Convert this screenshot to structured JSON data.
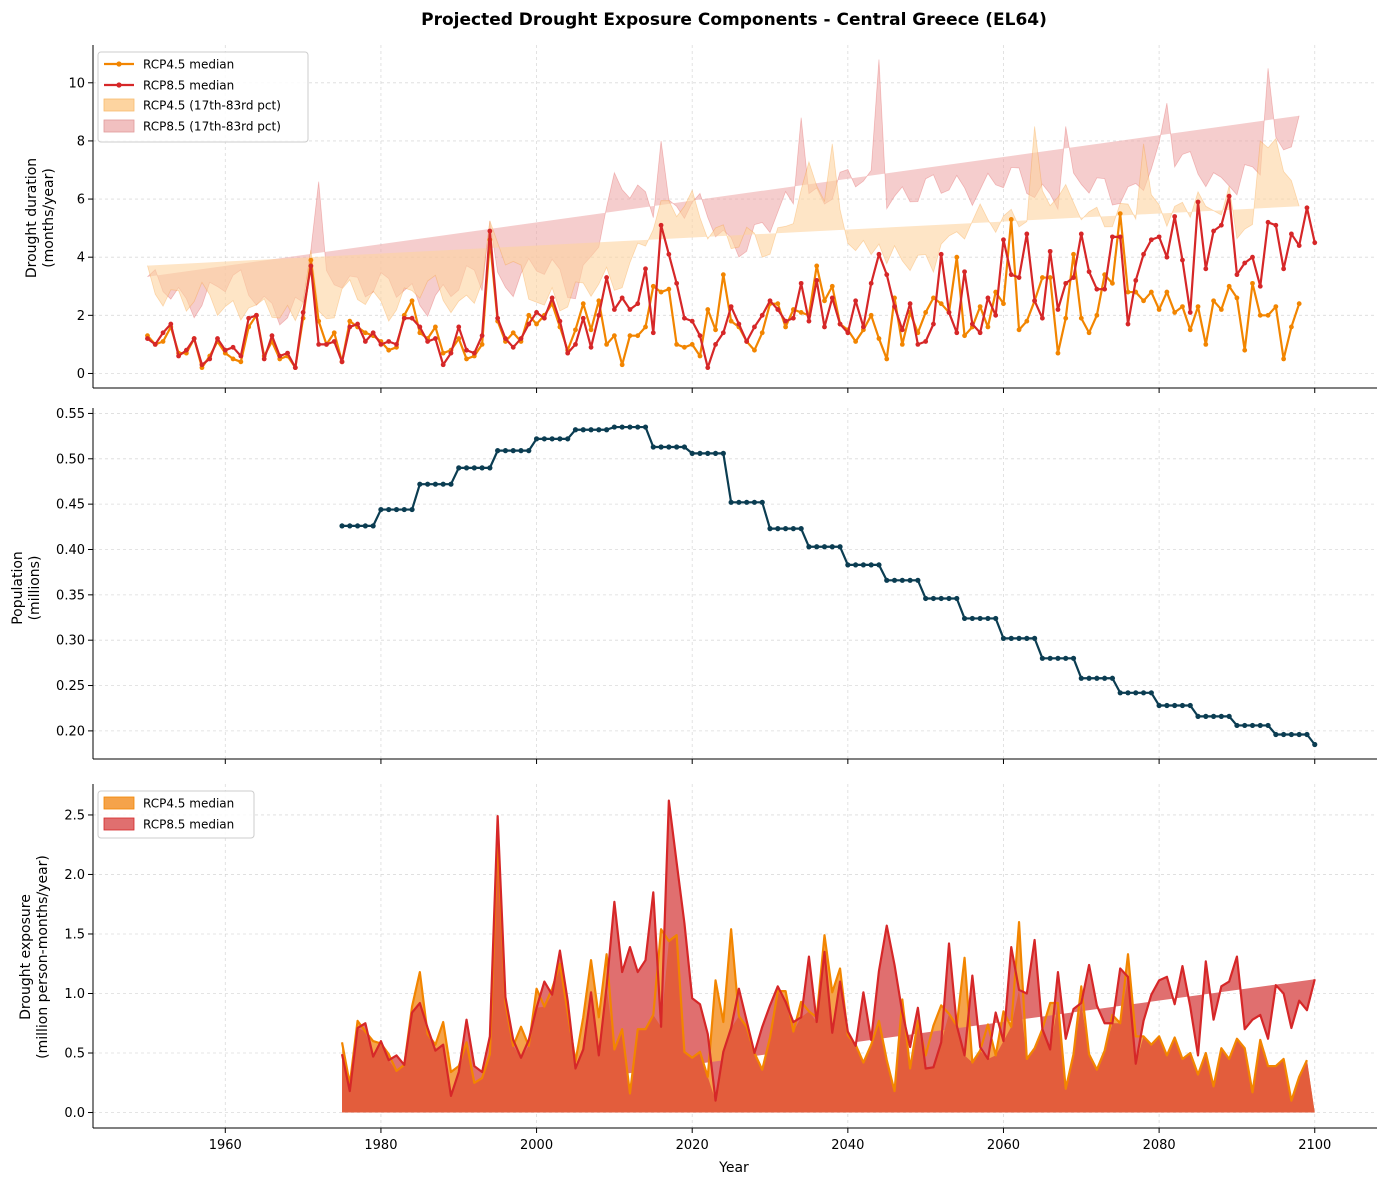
{
  "figure": {
    "title": "Projected Drought Exposure Components - Central Greece (EL64)"
  },
  "colors": {
    "rcp45": "#f28500",
    "rcp85": "#d62728",
    "rcp45_band": "#fdd4a0",
    "rcp85_band": "#eda4a4",
    "rcp45_area": "#f5a34a",
    "rcp85_area": "#e06f6f",
    "overlap_area": "#e35d3c",
    "population": "#0b3d52"
  },
  "chart_data": [
    {
      "type": "line",
      "ylabel": [
        "Drought duration",
        "(months/year)"
      ],
      "xlim": [
        1943,
        2108
      ],
      "ylim": [
        -0.5,
        11.3
      ],
      "yticks": [
        0,
        2,
        4,
        6,
        8,
        10
      ],
      "grid": true,
      "legend": {
        "placement": "top-left",
        "entries": [
          "RCP4.5 median",
          "RCP8.5 median",
          "RCP4.5 (17th-83rd pct)",
          "RCP8.5 (17th-83rd pct)"
        ]
      },
      "x_start": 1950,
      "x_end": 2100,
      "series": [
        {
          "name": "RCP4.5 median",
          "values": [
            1.3,
            1.0,
            1.1,
            1.6,
            0.7,
            0.7,
            1.2,
            0.2,
            0.6,
            1.1,
            0.7,
            0.5,
            0.4,
            1.6,
            2.0,
            0.6,
            1.1,
            0.5,
            0.6,
            0.2,
            1.9,
            3.9,
            1.8,
            1.0,
            1.4,
            0.4,
            1.8,
            1.6,
            1.4,
            1.3,
            1.1,
            0.8,
            0.9,
            2.0,
            2.5,
            1.4,
            1.2,
            1.6,
            0.7,
            0.8,
            1.2,
            0.5,
            0.6,
            1.0,
            4.6,
            1.8,
            1.1,
            1.4,
            1.1,
            2.0,
            1.7,
            2.0,
            2.4,
            1.6,
            0.8,
            1.5,
            2.4,
            1.5,
            2.5,
            1.0,
            1.3,
            0.3,
            1.3,
            1.3,
            1.6,
            3.0,
            2.8,
            2.9,
            1.0,
            0.9,
            1.0,
            0.6,
            2.2,
            1.5,
            3.4,
            1.8,
            1.6,
            1.1,
            0.8,
            1.4,
            2.4,
            2.4,
            1.6,
            2.2,
            2.1,
            2.0,
            3.7,
            2.5,
            3.0,
            1.7,
            1.5,
            1.1,
            1.5,
            2.0,
            1.2,
            0.5,
            2.6,
            1.0,
            2.1,
            1.4,
            2.1,
            2.6,
            2.4,
            2.1,
            4.0,
            1.3,
            1.6,
            2.3,
            1.6,
            2.8,
            2.4,
            5.3,
            1.5,
            1.8,
            2.5,
            3.3,
            3.3,
            0.7,
            1.9,
            4.1,
            1.9,
            1.4,
            2.0,
            3.4,
            3.1,
            5.5,
            2.8,
            2.8,
            2.5,
            2.8,
            2.2,
            2.8,
            2.1,
            2.3,
            1.5,
            2.3,
            1.0,
            2.5,
            2.2,
            3.0,
            2.6,
            0.8,
            3.1,
            2.0,
            2.0,
            2.3,
            0.5,
            1.6,
            2.4
          ]
        },
        {
          "name": "RCP8.5 median",
          "values": [
            1.2,
            1.0,
            1.4,
            1.7,
            0.6,
            0.8,
            1.2,
            0.3,
            0.5,
            1.2,
            0.8,
            0.9,
            0.6,
            1.9,
            2.0,
            0.5,
            1.3,
            0.6,
            0.7,
            0.2,
            2.1,
            3.7,
            1.0,
            1.0,
            1.1,
            0.4,
            1.6,
            1.7,
            1.1,
            1.4,
            1.0,
            1.1,
            1.0,
            1.9,
            1.9,
            1.6,
            1.1,
            1.2,
            0.3,
            0.7,
            1.6,
            0.8,
            0.7,
            1.3,
            4.9,
            1.9,
            1.2,
            0.9,
            1.2,
            1.7,
            2.1,
            1.9,
            2.6,
            1.8,
            0.7,
            1.0,
            1.9,
            0.9,
            2.0,
            3.3,
            2.2,
            2.6,
            2.2,
            2.4,
            3.6,
            1.4,
            5.1,
            4.1,
            3.1,
            1.9,
            1.8,
            1.3,
            0.2,
            1.0,
            1.4,
            2.3,
            1.7,
            1.1,
            1.6,
            2.0,
            2.5,
            2.2,
            1.8,
            1.9,
            3.1,
            1.8,
            3.2,
            1.6,
            2.6,
            1.7,
            1.4,
            2.5,
            1.6,
            3.1,
            4.1,
            3.4,
            2.3,
            1.5,
            2.4,
            1.0,
            1.1,
            1.7,
            4.1,
            2.1,
            1.4,
            3.5,
            1.7,
            1.4,
            2.6,
            2.0,
            4.6,
            3.4,
            3.3,
            4.8,
            2.5,
            1.9,
            4.2,
            2.2,
            3.1,
            3.3,
            4.8,
            3.5,
            2.9,
            2.9,
            4.7,
            4.7,
            1.7,
            3.2,
            4.1,
            4.6,
            4.7,
            4.0,
            5.4,
            3.9,
            2.1,
            5.9,
            3.6,
            4.9,
            5.1,
            6.1,
            3.4,
            3.8,
            4.0,
            3.0,
            5.2,
            5.1,
            3.6,
            4.8,
            4.4,
            5.7,
            4.5
          ]
        }
      ],
      "bands": [
        {
          "name": "RCP4.5 (17th-83rd pct)",
          "x": [
            1950,
            1955,
            1960,
            1965,
            1970,
            1975,
            1980,
            1985,
            1990,
            1995,
            2000,
            2005,
            2010,
            2015,
            2020,
            2025,
            2030,
            2035,
            2040,
            2045,
            2050,
            2055,
            2060,
            2065,
            2070,
            2075,
            2080,
            2085,
            2090,
            2095,
            2100
          ],
          "lower": [
            0.6,
            0.1,
            0.0,
            0.3,
            0.1,
            0.0,
            0.0,
            0.1,
            0.2,
            0.0,
            0.2,
            0.2,
            0.2,
            0.1,
            0.1,
            0.1,
            0.0,
            0.1,
            0.1,
            0.0,
            0.2,
            0.1,
            0.3,
            0.3,
            0.0,
            0.3,
            0.3,
            0.4,
            0.3,
            0.5,
            1.2
          ],
          "upper": [
            3.5,
            2.3,
            2.5,
            2.0,
            1.6,
            2.5,
            2.5,
            2.8,
            2.4,
            4.2,
            2.4,
            2.5,
            3.2,
            5.0,
            6.1,
            4.3,
            4.5,
            6.6,
            5.1,
            3.5,
            4.0,
            4.8,
            5.5,
            5.8,
            6.0,
            5.0,
            6.0,
            5.3,
            4.5,
            7.9,
            3.5
          ]
        },
        {
          "name": "RCP8.5 (17th-83rd pct)",
          "x": [
            1950,
            1955,
            1960,
            1965,
            1970,
            1975,
            1980,
            1985,
            1990,
            1995,
            2000,
            2005,
            2010,
            2015,
            2020,
            2025,
            2030,
            2035,
            2040,
            2045,
            2050,
            2055,
            2060,
            2065,
            2070,
            2075,
            2080,
            2085,
            2090,
            2095,
            2100
          ],
          "lower": [
            0.5,
            0.1,
            0.0,
            0.2,
            0.1,
            0.0,
            0.1,
            0.1,
            0.1,
            0.2,
            0.3,
            0.1,
            0.2,
            0.3,
            0.2,
            0.1,
            0.2,
            0.3,
            0.4,
            0.4,
            0.6,
            0.4,
            1.0,
            0.9,
            1.5,
            1.2,
            1.5,
            1.4,
            1.6,
            1.6,
            3.2
          ],
          "upper": [
            2.9,
            2.6,
            3.0,
            2.6,
            2.0,
            3.6,
            2.8,
            2.7,
            2.9,
            3.3,
            3.5,
            3.0,
            6.2,
            6.0,
            5.6,
            4.6,
            5.0,
            6.3,
            6.5,
            6.4,
            6.1,
            6.6,
            6.5,
            6.4,
            6.3,
            6.2,
            7.2,
            7.4,
            6.0,
            8.0,
            9.1
          ]
        }
      ],
      "band_peaks": [
        {
          "band": "RCP4.5 (17th-83rd pct)",
          "x": 2038,
          "y": 7.9
        },
        {
          "band": "RCP4.5 (17th-83rd pct)",
          "x": 2064,
          "y": 8.5
        },
        {
          "band": "RCP4.5 (17th-83rd pct)",
          "x": 2078,
          "y": 7.9
        },
        {
          "band": "RCP4.5 (17th-83rd pct)",
          "x": 2093,
          "y": 8.0
        },
        {
          "band": "RCP8.5 (17th-83rd pct)",
          "x": 1972,
          "y": 6.6
        },
        {
          "band": "RCP8.5 (17th-83rd pct)",
          "x": 2016,
          "y": 8.0
        },
        {
          "band": "RCP8.5 (17th-83rd pct)",
          "x": 2034,
          "y": 8.8
        },
        {
          "band": "RCP8.5 (17th-83rd pct)",
          "x": 2044,
          "y": 10.8
        },
        {
          "band": "RCP8.5 (17th-83rd pct)",
          "x": 2068,
          "y": 8.5
        },
        {
          "band": "RCP8.5 (17th-83rd pct)",
          "x": 2081,
          "y": 9.3
        },
        {
          "band": "RCP8.5 (17th-83rd pct)",
          "x": 2094,
          "y": 10.5
        }
      ]
    },
    {
      "type": "line",
      "ylabel": [
        "Population",
        "(millions)"
      ],
      "xlim": [
        1943,
        2108
      ],
      "ylim": [
        0.169,
        0.556
      ],
      "yticks": [
        0.2,
        0.25,
        0.3,
        0.35,
        0.4,
        0.45,
        0.5,
        0.55
      ],
      "ytick_labels": [
        "0.20",
        "0.25",
        "0.30",
        "0.35",
        "0.40",
        "0.45",
        "0.50",
        "0.55"
      ],
      "grid": true,
      "series": [
        {
          "name": "",
          "steps": [
            {
              "x0": 1975,
              "x1": 1979,
              "y": 0.426
            },
            {
              "x0": 1980,
              "x1": 1984,
              "y": 0.444
            },
            {
              "x0": 1985,
              "x1": 1989,
              "y": 0.472
            },
            {
              "x0": 1990,
              "x1": 1994,
              "y": 0.49
            },
            {
              "x0": 1995,
              "x1": 1999,
              "y": 0.509
            },
            {
              "x0": 2000,
              "x1": 2004,
              "y": 0.522
            },
            {
              "x0": 2005,
              "x1": 2009,
              "y": 0.532
            },
            {
              "x0": 2010,
              "x1": 2014,
              "y": 0.535
            },
            {
              "x0": 2015,
              "x1": 2019,
              "y": 0.513
            },
            {
              "x0": 2020,
              "x1": 2024,
              "y": 0.506
            },
            {
              "x0": 2025,
              "x1": 2029,
              "y": 0.452
            },
            {
              "x0": 2030,
              "x1": 2034,
              "y": 0.423
            },
            {
              "x0": 2035,
              "x1": 2039,
              "y": 0.403
            },
            {
              "x0": 2040,
              "x1": 2044,
              "y": 0.383
            },
            {
              "x0": 2045,
              "x1": 2049,
              "y": 0.366
            },
            {
              "x0": 2050,
              "x1": 2054,
              "y": 0.346
            },
            {
              "x0": 2055,
              "x1": 2059,
              "y": 0.324
            },
            {
              "x0": 2060,
              "x1": 2064,
              "y": 0.302
            },
            {
              "x0": 2065,
              "x1": 2069,
              "y": 0.28
            },
            {
              "x0": 2070,
              "x1": 2074,
              "y": 0.258
            },
            {
              "x0": 2075,
              "x1": 2079,
              "y": 0.242
            },
            {
              "x0": 2080,
              "x1": 2084,
              "y": 0.228
            },
            {
              "x0": 2085,
              "x1": 2089,
              "y": 0.216
            },
            {
              "x0": 2090,
              "x1": 2094,
              "y": 0.206
            },
            {
              "x0": 2095,
              "x1": 2099,
              "y": 0.196
            },
            {
              "x0": 2100,
              "x1": 2100,
              "y": 0.185
            }
          ]
        }
      ]
    },
    {
      "type": "area",
      "xlabel": "Year",
      "ylabel": [
        "Drought exposure",
        "(million person-months/year)"
      ],
      "xlim": [
        1943,
        2108
      ],
      "xticks": [
        1960,
        1980,
        2000,
        2020,
        2040,
        2060,
        2080,
        2100
      ],
      "ylim": [
        -0.13,
        2.76
      ],
      "yticks": [
        0.0,
        0.5,
        1.0,
        1.5,
        2.0,
        2.5
      ],
      "ytick_labels": [
        "0.0",
        "0.5",
        "1.0",
        "1.5",
        "2.0",
        "2.5"
      ],
      "grid": true,
      "legend": {
        "placement": "top-left",
        "entries": [
          "RCP4.5 median",
          "RCP8.5 median"
        ]
      },
      "x_start": 1975,
      "x_end": 2100,
      "series": [
        {
          "name": "RCP4.5 median",
          "values": [
            0.59,
            0.24,
            0.77,
            0.68,
            0.6,
            0.58,
            0.49,
            0.35,
            0.4,
            0.89,
            1.18,
            0.66,
            0.57,
            0.76,
            0.34,
            0.39,
            0.59,
            0.25,
            0.29,
            0.49,
            2.34,
            0.92,
            0.56,
            0.72,
            0.56,
            1.04,
            0.89,
            1.04,
            1.25,
            0.84,
            0.43,
            0.8,
            1.28,
            0.8,
            1.33,
            0.53,
            0.7,
            0.16,
            0.7,
            0.7,
            0.82,
            1.54,
            1.44,
            1.49,
            0.51,
            0.46,
            0.51,
            0.3,
            1.11,
            0.76,
            1.54,
            0.81,
            0.72,
            0.5,
            0.36,
            0.63,
            1.02,
            1.02,
            0.68,
            0.93,
            0.85,
            0.8,
            1.49,
            1.01,
            1.21,
            0.65,
            0.57,
            0.42,
            0.57,
            0.77,
            0.44,
            0.18,
            0.95,
            0.37,
            0.77,
            0.48,
            0.73,
            0.9,
            0.83,
            0.73,
            1.3,
            0.42,
            0.52,
            0.74,
            0.48,
            0.85,
            0.72,
            1.6,
            0.45,
            0.54,
            0.7,
            0.92,
            0.92,
            0.2,
            0.49,
            1.06,
            0.49,
            0.36,
            0.52,
            0.82,
            0.75,
            1.33,
            0.64,
            0.64,
            0.57,
            0.64,
            0.48,
            0.63,
            0.45,
            0.5,
            0.32,
            0.5,
            0.22,
            0.54,
            0.45,
            0.62,
            0.54,
            0.17,
            0.61,
            0.39,
            0.39,
            0.45,
            0.1,
            0.3,
            0.44
          ]
        },
        {
          "name": "RCP8.5 median",
          "values": [
            0.49,
            0.18,
            0.71,
            0.75,
            0.47,
            0.6,
            0.44,
            0.48,
            0.4,
            0.84,
            0.92,
            0.71,
            0.52,
            0.57,
            0.14,
            0.34,
            0.78,
            0.39,
            0.34,
            0.64,
            2.49,
            0.97,
            0.61,
            0.46,
            0.61,
            0.88,
            1.1,
            0.99,
            1.36,
            0.94,
            0.37,
            0.53,
            1.01,
            0.48,
            1.06,
            1.77,
            1.18,
            1.39,
            1.18,
            1.28,
            1.85,
            0.72,
            2.62,
            2.1,
            1.59,
            0.96,
            0.91,
            0.66,
            0.1,
            0.51,
            0.71,
            1.04,
            0.77,
            0.5,
            0.72,
            0.9,
            1.06,
            0.93,
            0.76,
            0.8,
            1.31,
            0.76,
            1.35,
            0.67,
            1.1,
            0.68,
            0.56,
            1.01,
            0.61,
            1.19,
            1.57,
            1.24,
            0.84,
            0.55,
            0.88,
            0.37,
            0.38,
            0.59,
            1.42,
            0.73,
            0.48,
            1.15,
            0.55,
            0.45,
            0.84,
            0.6,
            1.39,
            1.03,
            1.0,
            1.45,
            0.7,
            0.53,
            1.18,
            0.62,
            0.87,
            0.92,
            1.24,
            0.9,
            0.75,
            0.75,
            1.21,
            1.14,
            0.41,
            0.77,
            0.99,
            1.11,
            1.14,
            0.91,
            1.23,
            0.89,
            0.48,
            1.27,
            0.78,
            1.06,
            1.1,
            1.31,
            0.7,
            0.78,
            0.82,
            0.62,
            1.07,
            1.0,
            0.71,
            0.94,
            0.86,
            1.12,
            0.83
          ]
        }
      ]
    }
  ]
}
